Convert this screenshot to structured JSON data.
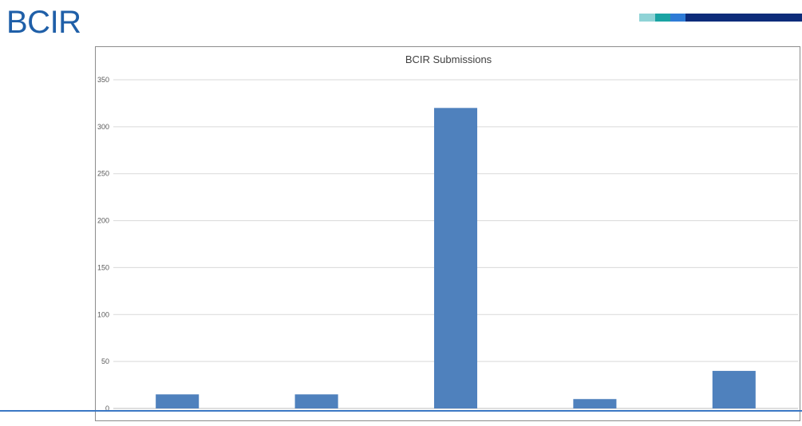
{
  "slide": {
    "title": "BCIR"
  },
  "accent_colors": [
    "#8fd3d6",
    "#1aa3a3",
    "#2e7bd6",
    "#0d2c7a"
  ],
  "chart_data": {
    "type": "bar",
    "title": "BCIR Submissions",
    "xlabel": "",
    "ylabel": "",
    "categories": [
      "",
      "",
      "",
      "",
      ""
    ],
    "values": [
      15,
      15,
      320,
      10,
      40
    ],
    "ylim": [
      0,
      350
    ],
    "yticks": [
      0,
      50,
      100,
      150,
      200,
      250,
      300,
      350
    ],
    "grid": true,
    "bar_color": "#4f81bd",
    "gridline_color": "#d9d9d9"
  }
}
